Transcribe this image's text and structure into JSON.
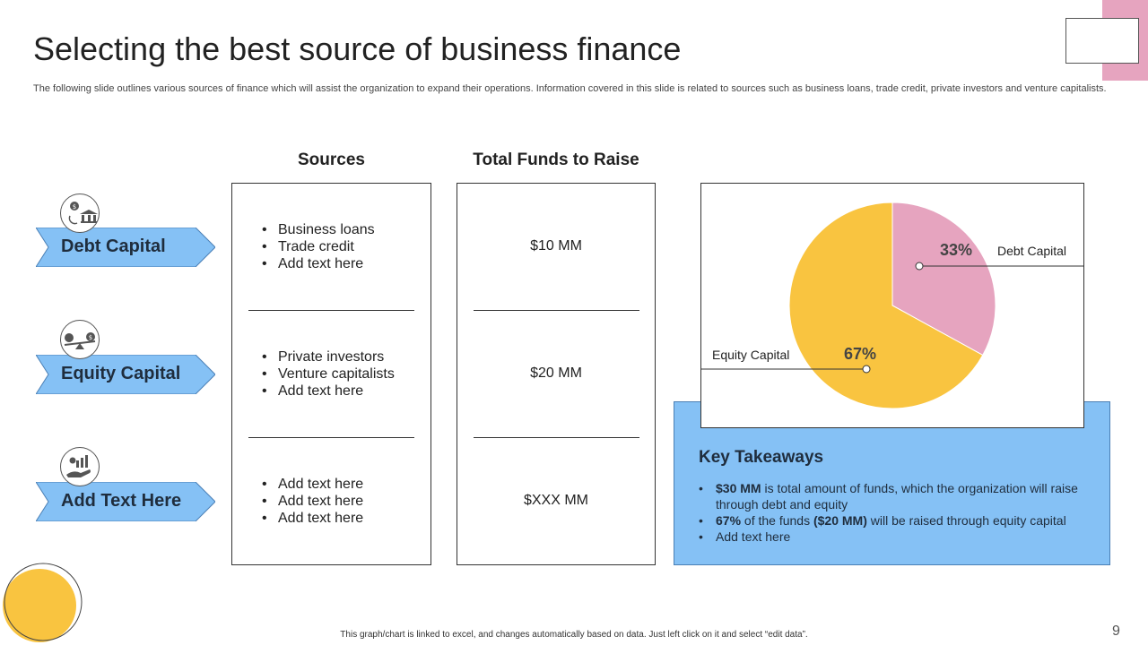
{
  "title": "Selecting the best source of business finance",
  "subtitle": "The following slide outlines various sources of finance which will assist the organization to expand their operations. Information covered in this slide is related to sources such as business loans, trade credit, private investors and venture capitalists.",
  "columns": {
    "sources": "Sources",
    "funds": "Total Funds to Raise"
  },
  "rows": [
    {
      "category": "Debt Capital",
      "icon": "money-bank-icon",
      "sources": [
        "Business loans",
        "Trade credit",
        "Add text here"
      ],
      "funds": "$10 MM"
    },
    {
      "category": "Equity Capital",
      "icon": "balance-scale-icon",
      "sources": [
        "Private investors",
        "Venture capitalists",
        "Add text here"
      ],
      "funds": "$20 MM"
    },
    {
      "category": "Add Text Here",
      "icon": "hand-growth-icon",
      "sources": [
        "Add text here",
        "Add text here",
        "Add text here"
      ],
      "funds": "$XXX MM"
    }
  ],
  "chart_data": {
    "type": "pie",
    "slices": [
      {
        "label": "Debt Capital",
        "value": 33,
        "value_label": "33%",
        "color": "#e6a4bf"
      },
      {
        "label": "Equity Capital",
        "value": 67,
        "value_label": "67%",
        "color": "#f9c440"
      }
    ]
  },
  "takeaways": {
    "title": "Key Takeaways",
    "items": [
      {
        "bold": "$30 MM",
        "text": " is total amount of funds, which the organization will raise through debt and equity"
      },
      {
        "bold": "67%",
        "text": " of the funds ",
        "bold2": "($20 MM)",
        "text2": " will be raised through equity capital"
      },
      {
        "text": "Add text here"
      }
    ]
  },
  "footer_note": "This graph/chart is linked to excel, and changes automatically based on data. Just left click on it and select “edit data”.",
  "page_number": "9",
  "colors": {
    "accent_blue": "#85c1f5",
    "pink": "#e6a4bf",
    "yellow": "#f9c440"
  }
}
